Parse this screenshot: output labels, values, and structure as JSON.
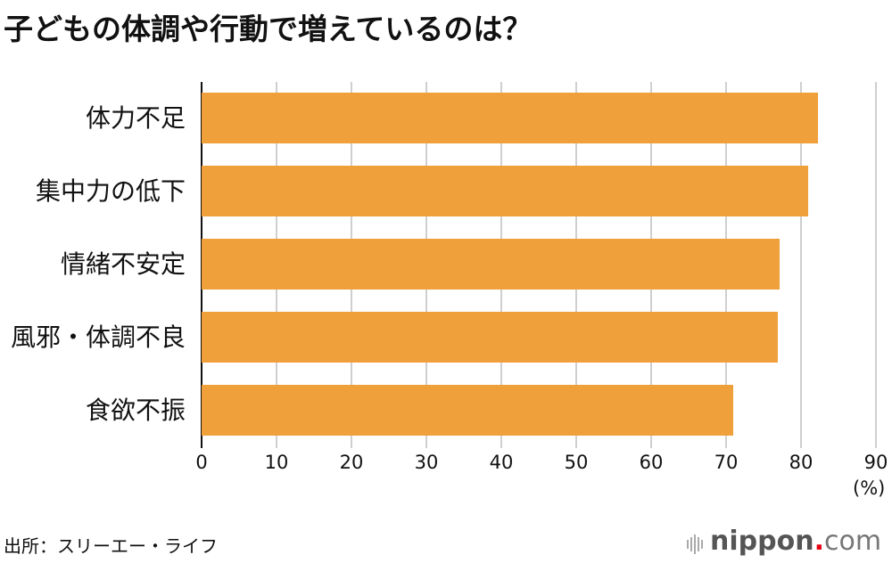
{
  "title": "子どもの体調や行動で増えているのは？",
  "chart_data": {
    "type": "bar",
    "orientation": "horizontal",
    "title": "子どもの体調や行動で増えているのは？",
    "categories": [
      "体力不足",
      "集中力の低下",
      "情緒不安定",
      "風邪・体調不良",
      "食欲不振"
    ],
    "values": [
      82.3,
      80.9,
      77.2,
      76.9,
      70.9
    ],
    "xlabel": "(%)",
    "ylabel": "",
    "xlim": [
      0,
      90
    ],
    "xticks": [
      "0",
      "10",
      "20",
      "30",
      "40",
      "50",
      "60",
      "70",
      "80",
      "90"
    ],
    "grid": true,
    "bar_color": "#f0a03a"
  },
  "axis": {
    "unit": "(%)",
    "ticks": [
      "0",
      "10",
      "20",
      "30",
      "40",
      "50",
      "60",
      "70",
      "80",
      "90"
    ]
  },
  "source": "出所：スリーエー・ライフ",
  "logo": {
    "name": "nippon",
    "dot": ".",
    "tld": "com"
  }
}
